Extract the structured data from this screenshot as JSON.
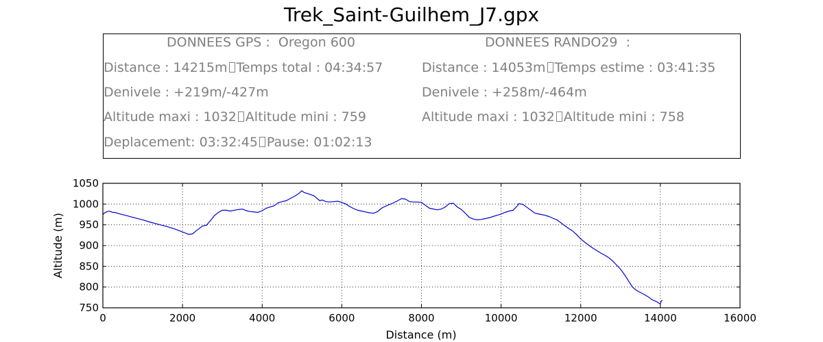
{
  "chart_title": "Trek_Saint-Guilhem_J7.gpx",
  "info": {
    "gps_header": "DONNEES GPS :  Oregon 600",
    "rando_header": "DONNEES RANDO29  :",
    "gps_line1_a": "Distance : 14215m",
    "gps_line1_b": "Temps total : 04:34:57",
    "gps_line2": "Denivele : +219m/-427m",
    "gps_line3_a": "Altitude maxi : 1032",
    "gps_line3_b": "Altitude mini : 759",
    "gps_line4_a": "Deplacement: 03:32:45",
    "gps_line4_b": "Pause: 01:02:13",
    "rando_line1_a": "Distance : 14053m",
    "rando_line1_b": "Temps estime : 03:41:35",
    "rando_line2": "Denivele : +258m/-464m",
    "rando_line3_a": "Altitude maxi : 1032",
    "rando_line3_b": "Altitude mini : 758"
  },
  "colors": {
    "line": "#0000cc",
    "info_text": "#808080",
    "grid": "#000000"
  },
  "chart_data": {
    "type": "line",
    "title": "Trek_Saint-Guilhem_J7.gpx",
    "xlabel": "Distance (m)",
    "ylabel": "Altitude (m)",
    "xlim": [
      0,
      16000
    ],
    "ylim": [
      750,
      1050
    ],
    "xticks": [
      0,
      2000,
      4000,
      6000,
      8000,
      10000,
      12000,
      14000,
      16000
    ],
    "yticks": [
      750,
      800,
      850,
      900,
      950,
      1000,
      1050
    ],
    "xtick_labels": [
      "0",
      "2000",
      "4000",
      "6000",
      "8000",
      "10000",
      "12000",
      "14000",
      "16000"
    ],
    "ytick_labels": [
      "750",
      "800",
      "850",
      "900",
      "950",
      "1000",
      "1050"
    ],
    "grid": true,
    "series": [
      {
        "x": [
          0,
          60,
          150,
          250,
          300,
          400,
          600,
          800,
          1000,
          1200,
          1400,
          1600,
          1800,
          2000,
          2150,
          2250,
          2350,
          2500,
          2600,
          2700,
          2800,
          2900,
          3000,
          3100,
          3200,
          3350,
          3500,
          3600,
          3700,
          3800,
          3900,
          4000,
          4100,
          4200,
          4300,
          4400,
          4500,
          4600,
          4700,
          4800,
          4900,
          5000,
          5050,
          5150,
          5300,
          5400,
          5450,
          5500,
          5600,
          5700,
          5800,
          5900,
          6000,
          6100,
          6200,
          6300,
          6400,
          6500,
          6600,
          6700,
          6800,
          6900,
          7000,
          7100,
          7200,
          7300,
          7400,
          7500,
          7600,
          7700,
          7800,
          7900,
          8000,
          8100,
          8200,
          8300,
          8400,
          8500,
          8600,
          8700,
          8800,
          8900,
          9000,
          9100,
          9200,
          9300,
          9400,
          9500,
          9600,
          9700,
          9800,
          9900,
          10000,
          10100,
          10200,
          10300,
          10400,
          10450,
          10550,
          10650,
          10750,
          10850,
          11000,
          11100,
          11200,
          11300,
          11400,
          11500,
          11600,
          11700,
          11800,
          11900,
          12000,
          12100,
          12200,
          12300,
          12400,
          12500,
          12600,
          12700,
          12800,
          12900,
          13000,
          13100,
          13200,
          13300,
          13400,
          13500,
          13600,
          13700,
          13800,
          13900,
          13950,
          14000,
          14020,
          14050
        ],
        "y": [
          975,
          980,
          983,
          980,
          980,
          977,
          972,
          967,
          962,
          956,
          951,
          946,
          940,
          933,
          927,
          928,
          936,
          947,
          949,
          960,
          972,
          980,
          985,
          985,
          983,
          986,
          988,
          984,
          982,
          981,
          980,
          984,
          990,
          993,
          996,
          1003,
          1006,
          1008,
          1013,
          1018,
          1024,
          1032,
          1028,
          1025,
          1020,
          1012,
          1008,
          1010,
          1006,
          1005,
          1006,
          1007,
          1004,
          1000,
          994,
          989,
          985,
          983,
          981,
          979,
          978,
          982,
          990,
          995,
          999,
          1003,
          1008,
          1013,
          1012,
          1006,
          1005,
          1005,
          1004,
          997,
          990,
          988,
          986,
          988,
          993,
          1001,
          1002,
          993,
          987,
          978,
          968,
          964,
          962,
          963,
          965,
          967,
          970,
          973,
          976,
          980,
          983,
          985,
          995,
          1001,
          999,
          992,
          985,
          978,
          975,
          973,
          970,
          966,
          962,
          955,
          948,
          941,
          935,
          926,
          916,
          908,
          901,
          894,
          888,
          882,
          877,
          871,
          863,
          853,
          843,
          830,
          815,
          800,
          792,
          787,
          782,
          776,
          769,
          765,
          762,
          759,
          766,
          768
        ]
      }
    ]
  }
}
